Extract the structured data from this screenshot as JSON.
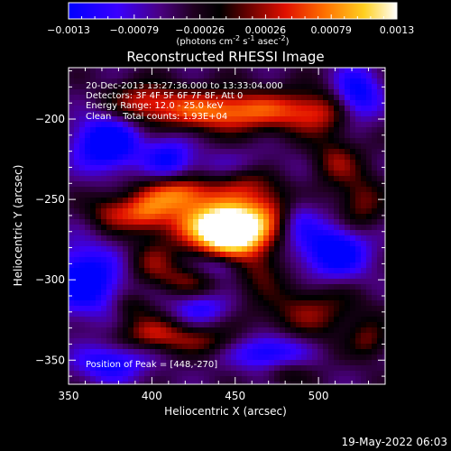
{
  "chart_data": {
    "type": "heatmap",
    "title": "Reconstructed RHESSI Image",
    "xlabel": "Heliocentric X (arcsec)",
    "ylabel": "Heliocentric Y (arcsec)",
    "xlim": [
      350,
      540
    ],
    "ylim": [
      -365,
      -168
    ],
    "x_ticks": [
      350,
      400,
      450,
      500
    ],
    "y_ticks": [
      -200,
      -250,
      -300,
      -350
    ],
    "colorbar": {
      "min": -0.0013,
      "max": 0.0013,
      "ticks": [
        "-0.0013",
        "-0.00079",
        "-0.00026",
        "0.00026",
        "0.00079",
        "0.0013"
      ],
      "units_label": "(photons cm",
      "units_parts": [
        "(photons cm",
        "-2",
        " s",
        "-1",
        " asec",
        "-2",
        ")"
      ]
    },
    "annotations": [
      "20-Dec-2013 13:27:36.000 to 13:33:04.000",
      "Detectors: 3F 4F 5F 6F 7F 8F, Att 0",
      "Energy Range: 12.0 - 25.0 keV",
      "Clean    Total counts: 1.93E+04"
    ],
    "peak_label": "Position of Peak = [448,-270]",
    "peak": {
      "x": 448,
      "y": -270,
      "value": 0.0013
    },
    "blobs": [
      {
        "x": 448,
        "y": -270,
        "sx": 14,
        "sy": 10,
        "a": 0.00215
      },
      {
        "x": 430,
        "y": -262,
        "sx": 24,
        "sy": 14,
        "a": 0.0009
      },
      {
        "x": 470,
        "y": -255,
        "sx": 12,
        "sy": 10,
        "a": 0.0006
      },
      {
        "x": 415,
        "y": -245,
        "sx": 14,
        "sy": 8,
        "a": 0.0009
      },
      {
        "x": 455,
        "y": -237,
        "sx": 14,
        "sy": 8,
        "a": 0.0008
      },
      {
        "x": 395,
        "y": -258,
        "sx": 10,
        "sy": 8,
        "a": 0.0007
      },
      {
        "x": 375,
        "y": -258,
        "sx": 10,
        "sy": 8,
        "a": 0.0006
      },
      {
        "x": 400,
        "y": -290,
        "sx": 10,
        "sy": 8,
        "a": 0.0005
      },
      {
        "x": 420,
        "y": -300,
        "sx": 14,
        "sy": 6,
        "a": 0.0005
      },
      {
        "x": 465,
        "y": -293,
        "sx": 10,
        "sy": 10,
        "a": 0.0005
      },
      {
        "x": 445,
        "y": -195,
        "sx": 35,
        "sy": 9,
        "a": 0.0012
      },
      {
        "x": 395,
        "y": -188,
        "sx": 14,
        "sy": 8,
        "a": 0.0006
      },
      {
        "x": 500,
        "y": -196,
        "sx": 15,
        "sy": 10,
        "a": 0.0006
      },
      {
        "x": 510,
        "y": -226,
        "sx": 10,
        "sy": 10,
        "a": 0.0006
      },
      {
        "x": 525,
        "y": -253,
        "sx": 10,
        "sy": 14,
        "a": 0.0006
      },
      {
        "x": 495,
        "y": -320,
        "sx": 22,
        "sy": 12,
        "a": 0.0006
      },
      {
        "x": 400,
        "y": -333,
        "sx": 14,
        "sy": 7,
        "a": 0.0007
      },
      {
        "x": 430,
        "y": -338,
        "sx": 18,
        "sy": 6,
        "a": 0.0005
      },
      {
        "x": 530,
        "y": -338,
        "sx": 8,
        "sy": 8,
        "a": 0.0005
      },
      {
        "x": 480,
        "y": -358,
        "sx": 10,
        "sy": 6,
        "a": 0.0004
      },
      {
        "x": 388,
        "y": -317,
        "sx": 8,
        "sy": 6,
        "a": 0.0004
      },
      {
        "x": 450,
        "y": -232,
        "sx": 20,
        "sy": 8,
        "a": -0.0006
      },
      {
        "x": 373,
        "y": -215,
        "sx": 14,
        "sy": 12,
        "a": -0.0012
      },
      {
        "x": 410,
        "y": -225,
        "sx": 10,
        "sy": 10,
        "a": -0.0008
      },
      {
        "x": 360,
        "y": -300,
        "sx": 15,
        "sy": 15,
        "a": -0.0011
      },
      {
        "x": 523,
        "y": -185,
        "sx": 10,
        "sy": 12,
        "a": -0.001
      },
      {
        "x": 510,
        "y": -282,
        "sx": 15,
        "sy": 12,
        "a": -0.0011
      },
      {
        "x": 470,
        "y": -345,
        "sx": 15,
        "sy": 8,
        "a": -0.0009
      },
      {
        "x": 375,
        "y": -352,
        "sx": 15,
        "sy": 8,
        "a": -0.0008
      },
      {
        "x": 430,
        "y": -318,
        "sx": 12,
        "sy": 6,
        "a": -0.0006
      },
      {
        "x": 440,
        "y": -292,
        "sx": 10,
        "sy": 6,
        "a": -0.0005
      },
      {
        "x": 488,
        "y": -262,
        "sx": 8,
        "sy": 10,
        "a": -0.0005
      }
    ],
    "baseline": -0.00045,
    "grid": false,
    "colormap": "rhessi-blue-black-red-yellow-white"
  },
  "footer": {
    "timestamp": "19-May-2022 06:03"
  }
}
